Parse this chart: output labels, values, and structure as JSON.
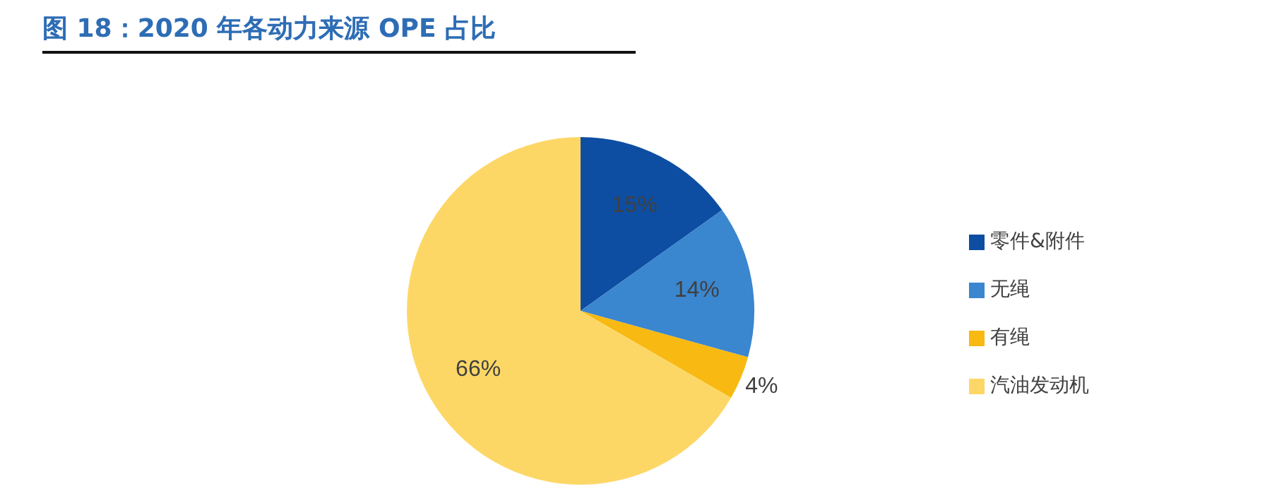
{
  "chart_data": {
    "type": "pie",
    "title": "图 18：2020 年各动力来源 OPE 占比",
    "categories": [
      "零件&附件",
      "无绳",
      "有绳",
      "汽油发动机"
    ],
    "values": [
      15,
      14,
      4,
      66
    ],
    "colors": [
      "#0d4ea3",
      "#3a86cf",
      "#f7b912",
      "#fdd766"
    ],
    "value_labels": [
      "15%",
      "14%",
      "4%",
      "66%"
    ],
    "legend": "right"
  }
}
